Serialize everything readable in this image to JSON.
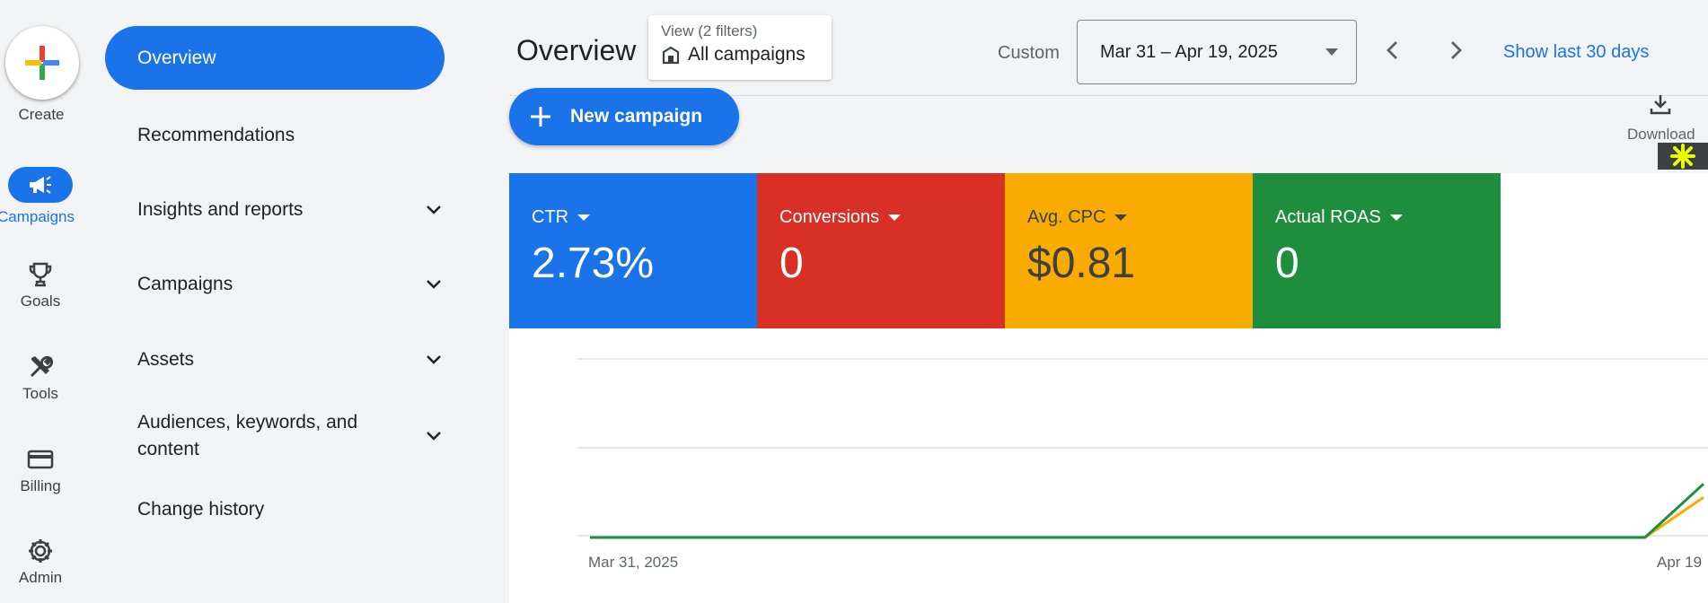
{
  "rail": {
    "create_label": "Create",
    "items": [
      {
        "label": "Campaigns",
        "icon": "megaphone-icon",
        "active": true
      },
      {
        "label": "Goals",
        "icon": "trophy-icon"
      },
      {
        "label": "Tools",
        "icon": "tools-icon"
      },
      {
        "label": "Billing",
        "icon": "credit-card-icon"
      },
      {
        "label": "Admin",
        "icon": "gear-icon"
      }
    ]
  },
  "nav": {
    "items": [
      {
        "label": "Overview",
        "active": true
      },
      {
        "label": "Recommendations"
      },
      {
        "label": "Insights and reports",
        "expandable": true
      },
      {
        "label": "Campaigns",
        "expandable": true
      },
      {
        "label": "Assets",
        "expandable": true
      },
      {
        "label": "Audiences, keywords, and content",
        "expandable": true
      },
      {
        "label": "Change history"
      }
    ]
  },
  "header": {
    "title": "Overview",
    "view_filter": {
      "sub": "View (2 filters)",
      "value": "All campaigns"
    },
    "date_mode": "Custom",
    "date_range": "Mar 31 – Apr 19, 2025",
    "show_last": "Show last 30 days"
  },
  "toolbar": {
    "new_campaign_label": "New campaign",
    "download_label": "Download"
  },
  "cards": [
    {
      "metric": "CTR",
      "value": "2.73%",
      "color": "#1a73e8",
      "text_color": "#ffffff"
    },
    {
      "metric": "Conversions",
      "value": "0",
      "color": "#d93025",
      "text_color": "#ffffff"
    },
    {
      "metric": "Avg. CPC",
      "value": "$0.81",
      "color": "#f9ab00",
      "text_color": "#3c4043"
    },
    {
      "metric": "Actual ROAS",
      "value": "0",
      "color": "#1e8e3e",
      "text_color": "#ffffff"
    }
  ],
  "chart_data": {
    "type": "line",
    "x_labels": [
      "Mar 31, 2025",
      "Apr 19"
    ],
    "series": [
      {
        "color": "#f9ab00",
        "values": [
          0,
          0,
          0,
          0,
          0,
          0,
          0,
          0,
          0,
          0,
          0,
          0,
          0,
          0,
          0,
          0,
          0,
          0,
          0,
          0.45
        ]
      },
      {
        "color": "#1e8e3e",
        "values": [
          0,
          0,
          0,
          0,
          0,
          0,
          0,
          0,
          0,
          0,
          0,
          0,
          0,
          0,
          0,
          0,
          0,
          0,
          0,
          0.6
        ]
      }
    ],
    "ylim": [
      0,
      2
    ],
    "grid": true
  }
}
